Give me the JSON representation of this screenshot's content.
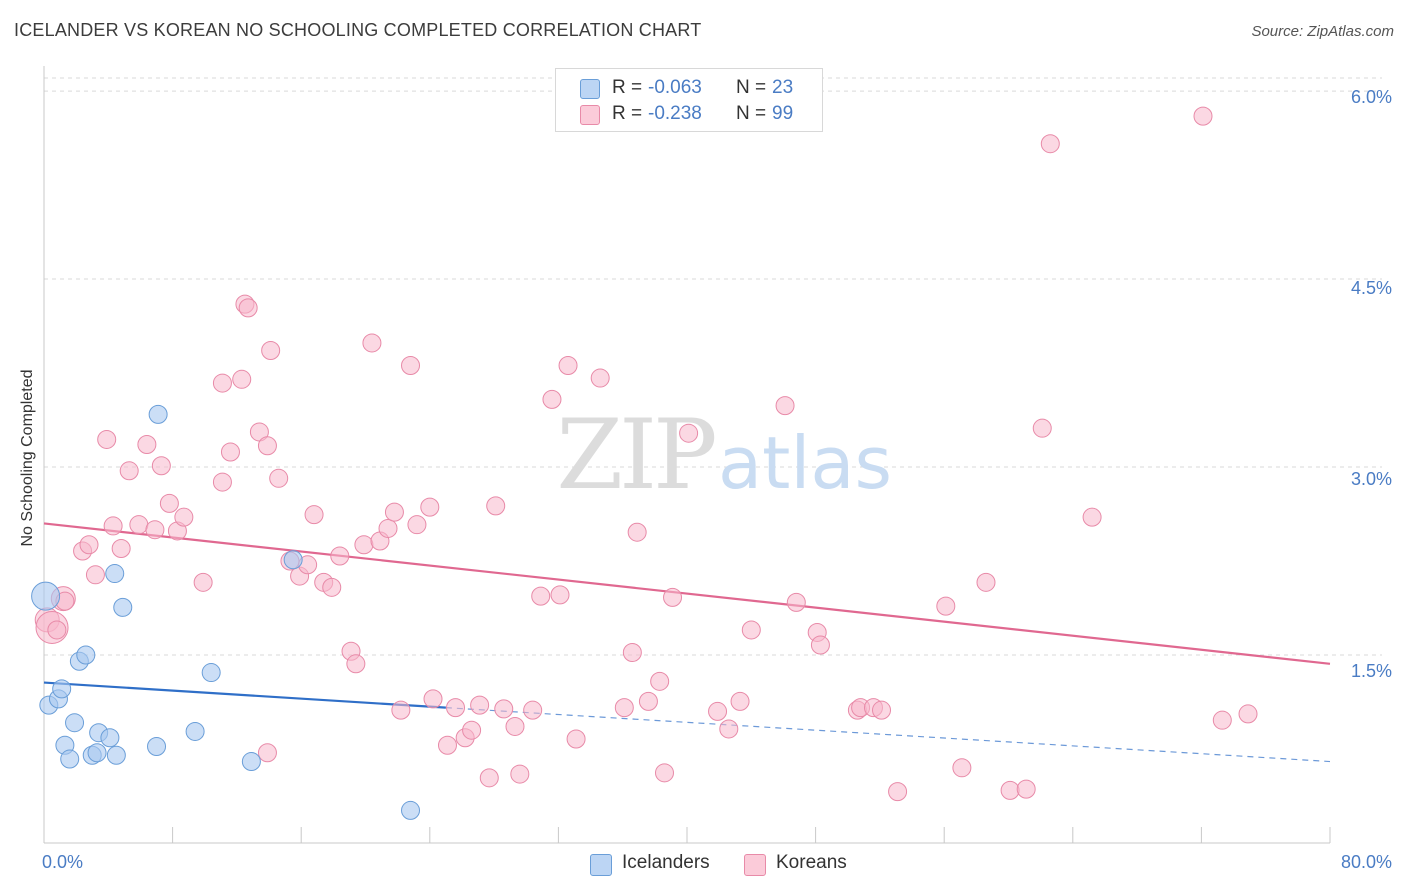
{
  "header": {
    "title": "ICELANDER VS KOREAN NO SCHOOLING COMPLETED CORRELATION CHART",
    "source": "Source: ZipAtlas.com"
  },
  "legend": {
    "series": [
      {
        "name": "Icelanders",
        "r_label": "R =",
        "r_value": "-0.063",
        "n_label": "N =",
        "n_value": "23"
      },
      {
        "name": "Koreans",
        "r_label": "R =",
        "r_value": "-0.238",
        "n_label": "N =",
        "n_value": "99"
      }
    ]
  },
  "watermark": {
    "zip": "ZIP",
    "atlas": "atlas"
  },
  "colors": {
    "icelander_fill": "#a8c8f0",
    "icelander_stroke": "#6a9ed8",
    "icelander_line": "#2f6fc8",
    "korean_fill": "#f7b8cc",
    "korean_stroke": "#e88aa8",
    "korean_line": "#e06890",
    "grid": "#d9d9d9",
    "axis_text": "#4a7cc4"
  },
  "chart_data": {
    "type": "scatter",
    "title": "ICELANDER VS KOREAN NO SCHOOLING COMPLETED CORRELATION CHART",
    "xlabel": "",
    "ylabel": "No Schooling Completed",
    "xlim": [
      0,
      80
    ],
    "ylim": [
      0,
      6.2
    ],
    "x_tick_labels": [
      "0.0%",
      "80.0%"
    ],
    "y_ticks": [
      1.5,
      3.0,
      4.5,
      6.0
    ],
    "y_tick_labels": [
      "1.5%",
      "3.0%",
      "4.5%",
      "6.0%"
    ],
    "grid": true,
    "series": [
      {
        "name": "Icelanders",
        "points": [
          [
            0.1,
            1.97,
            14
          ],
          [
            0.3,
            1.1,
            9
          ],
          [
            0.9,
            1.15,
            9
          ],
          [
            1.1,
            1.23,
            9
          ],
          [
            1.3,
            0.78,
            9
          ],
          [
            1.6,
            0.67,
            9
          ],
          [
            1.9,
            0.96,
            9
          ],
          [
            2.2,
            1.45,
            9
          ],
          [
            2.6,
            1.5,
            9
          ],
          [
            3.0,
            0.7,
            9
          ],
          [
            3.3,
            0.72,
            9
          ],
          [
            3.4,
            0.88,
            9
          ],
          [
            4.1,
            0.84,
            9
          ],
          [
            4.4,
            2.15,
            9
          ],
          [
            4.5,
            0.7,
            9
          ],
          [
            4.9,
            1.88,
            9
          ],
          [
            7.0,
            0.77,
            9
          ],
          [
            7.1,
            3.42,
            9
          ],
          [
            9.4,
            0.89,
            9
          ],
          [
            10.4,
            1.36,
            9
          ],
          [
            12.9,
            0.65,
            9
          ],
          [
            15.5,
            2.26,
            9
          ],
          [
            22.8,
            0.26,
            9
          ]
        ],
        "trend_solid": [
          [
            0,
            1.28
          ],
          [
            25,
            1.08
          ]
        ],
        "trend_dashed": [
          [
            25,
            1.08
          ],
          [
            80,
            0.65
          ]
        ]
      },
      {
        "name": "Koreans",
        "points": [
          [
            0.2,
            1.78,
            12
          ],
          [
            0.5,
            1.72,
            16
          ],
          [
            1.2,
            1.95,
            12
          ],
          [
            1.3,
            1.93,
            9
          ],
          [
            2.4,
            2.33,
            9
          ],
          [
            2.8,
            2.38,
            9
          ],
          [
            3.2,
            2.14,
            9
          ],
          [
            3.9,
            3.22,
            9
          ],
          [
            4.3,
            2.53,
            9
          ],
          [
            4.8,
            2.35,
            9
          ],
          [
            5.3,
            2.97,
            9
          ],
          [
            5.9,
            2.54,
            9
          ],
          [
            6.4,
            3.18,
            9
          ],
          [
            6.9,
            2.5,
            9
          ],
          [
            7.3,
            3.01,
            9
          ],
          [
            7.8,
            2.71,
            9
          ],
          [
            8.3,
            2.49,
            9
          ],
          [
            8.7,
            2.6,
            9
          ],
          [
            9.9,
            2.08,
            9
          ],
          [
            11.1,
            2.88,
            9
          ],
          [
            11.1,
            3.67,
            9
          ],
          [
            11.6,
            3.12,
            9
          ],
          [
            12.3,
            3.7,
            9
          ],
          [
            12.5,
            4.3,
            9
          ],
          [
            12.7,
            4.27,
            9
          ],
          [
            13.4,
            3.28,
            9
          ],
          [
            13.9,
            3.17,
            9
          ],
          [
            13.9,
            0.72,
            9
          ],
          [
            14.1,
            3.93,
            9
          ],
          [
            14.6,
            2.91,
            9
          ],
          [
            15.3,
            2.25,
            9
          ],
          [
            15.9,
            2.13,
            9
          ],
          [
            16.4,
            2.22,
            9
          ],
          [
            16.8,
            2.62,
            9
          ],
          [
            17.4,
            2.08,
            9
          ],
          [
            17.9,
            2.04,
            9
          ],
          [
            18.4,
            2.29,
            9
          ],
          [
            19.1,
            1.53,
            9
          ],
          [
            19.4,
            1.43,
            9
          ],
          [
            19.9,
            2.38,
            9
          ],
          [
            20.4,
            3.99,
            9
          ],
          [
            20.9,
            2.41,
            9
          ],
          [
            21.4,
            2.51,
            9
          ],
          [
            21.8,
            2.64,
            9
          ],
          [
            22.2,
            1.06,
            9
          ],
          [
            22.8,
            3.81,
            9
          ],
          [
            23.2,
            2.54,
            9
          ],
          [
            24.0,
            2.68,
            9
          ],
          [
            24.2,
            1.15,
            9
          ],
          [
            25.1,
            0.78,
            9
          ],
          [
            25.6,
            1.08,
            9
          ],
          [
            26.2,
            0.84,
            9
          ],
          [
            26.6,
            0.9,
            9
          ],
          [
            27.1,
            1.1,
            9
          ],
          [
            27.7,
            0.52,
            9
          ],
          [
            28.1,
            2.69,
            9
          ],
          [
            28.6,
            1.07,
            9
          ],
          [
            29.3,
            0.93,
            9
          ],
          [
            29.6,
            0.55,
            9
          ],
          [
            30.4,
            1.06,
            9
          ],
          [
            30.9,
            1.97,
            9
          ],
          [
            31.6,
            3.54,
            9
          ],
          [
            32.1,
            1.98,
            9
          ],
          [
            32.6,
            3.81,
            9
          ],
          [
            33.1,
            0.83,
            9
          ],
          [
            34.6,
            3.71,
            9
          ],
          [
            36.1,
            1.08,
            9
          ],
          [
            36.6,
            1.52,
            9
          ],
          [
            36.9,
            2.48,
            9
          ],
          [
            37.6,
            1.13,
            9
          ],
          [
            38.3,
            1.29,
            9
          ],
          [
            38.6,
            0.56,
            9
          ],
          [
            39.1,
            1.96,
            9
          ],
          [
            40.1,
            3.27,
            9
          ],
          [
            41.9,
            1.05,
            9
          ],
          [
            42.6,
            0.91,
            9
          ],
          [
            43.3,
            1.13,
            9
          ],
          [
            44.0,
            1.7,
            9
          ],
          [
            46.1,
            3.49,
            9
          ],
          [
            46.8,
            1.92,
            9
          ],
          [
            48.1,
            1.68,
            9
          ],
          [
            48.3,
            1.58,
            9
          ],
          [
            50.6,
            1.06,
            9
          ],
          [
            50.8,
            1.08,
            9
          ],
          [
            51.6,
            1.08,
            9
          ],
          [
            52.1,
            1.06,
            9
          ],
          [
            53.1,
            0.41,
            9
          ],
          [
            56.1,
            1.89,
            9
          ],
          [
            57.1,
            0.6,
            9
          ],
          [
            58.6,
            2.08,
            9
          ],
          [
            60.1,
            0.42,
            9
          ],
          [
            61.1,
            0.43,
            9
          ],
          [
            62.1,
            3.31,
            9
          ],
          [
            62.6,
            5.58,
            9
          ],
          [
            65.2,
            2.6,
            9
          ],
          [
            72.1,
            5.8,
            9
          ],
          [
            73.3,
            0.98,
            9
          ],
          [
            74.9,
            1.03,
            9
          ],
          [
            0.8,
            1.7,
            9
          ]
        ],
        "trend_solid": [
          [
            0,
            2.55
          ],
          [
            80,
            1.43
          ]
        ]
      }
    ]
  }
}
